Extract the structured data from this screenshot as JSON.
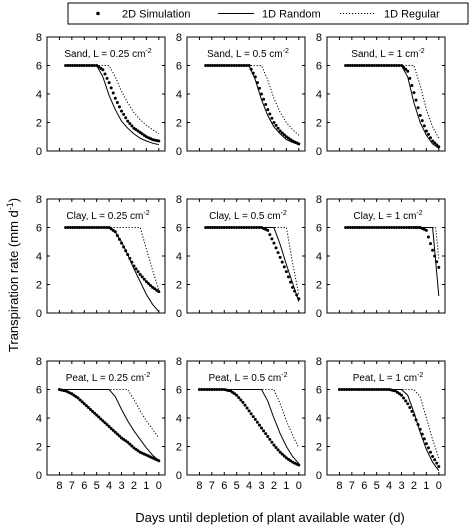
{
  "figure": {
    "ylabel": "Transpiration rate (mm d",
    "ylabel_sup": "-1",
    "ylabel_end": ")",
    "xlabel": "Days until depletion of plant available water (d)"
  },
  "legend": {
    "placement": "top",
    "entries": [
      {
        "label": "2D Simulation",
        "style": "dots"
      },
      {
        "label": "1D Random",
        "style": "solid"
      },
      {
        "label": "1D Regular",
        "style": "dotted"
      }
    ]
  },
  "chart_data": [
    {
      "type": "line",
      "label": "Sand, L = 0.25 cm",
      "label_sup": "-2",
      "xlim": [
        9,
        -0.5
      ],
      "ylim": [
        0,
        8
      ],
      "yticks": [
        0,
        2,
        4,
        6,
        8
      ],
      "xticks": [],
      "grid": false,
      "series": [
        {
          "name": "2D Simulation",
          "style": "dots",
          "x": [
            7.5,
            6,
            5,
            4.5,
            4,
            3.5,
            3,
            2.5,
            2,
            1.5,
            1,
            0.5,
            0
          ],
          "y": [
            6,
            6,
            6,
            5.7,
            4.8,
            3.7,
            2.8,
            2.1,
            1.6,
            1.3,
            1.0,
            0.8,
            0.7
          ]
        },
        {
          "name": "1D Random",
          "style": "solid",
          "x": [
            7.5,
            6,
            5,
            4.5,
            4,
            3.5,
            3,
            2.5,
            2,
            1.5,
            1,
            0.5,
            0
          ],
          "y": [
            6,
            6,
            6,
            5.2,
            3.9,
            2.9,
            2.1,
            1.6,
            1.2,
            0.9,
            0.7,
            0.55,
            0.45
          ]
        },
        {
          "name": "1D Regular",
          "style": "dotted",
          "x": [
            7.5,
            6,
            5,
            4,
            3.5,
            3,
            2.5,
            2,
            1.5,
            1,
            0.5,
            0
          ],
          "y": [
            6,
            6,
            6,
            6,
            5.2,
            4.2,
            3.4,
            2.7,
            2.2,
            1.8,
            1.5,
            1.2
          ]
        }
      ]
    },
    {
      "type": "line",
      "label": "Sand, L = 0.5 cm",
      "label_sup": "-2",
      "xlim": [
        9,
        -0.5
      ],
      "ylim": [
        0,
        8
      ],
      "yticks": [
        0,
        2,
        4,
        6,
        8
      ],
      "xticks": [],
      "grid": false,
      "series": [
        {
          "name": "2D Simulation",
          "style": "dots",
          "x": [
            7.5,
            6,
            5,
            4,
            3.5,
            3,
            2.5,
            2,
            1.5,
            1,
            0.5,
            0
          ],
          "y": [
            6,
            6,
            6,
            6,
            5.2,
            4.0,
            2.9,
            2.0,
            1.4,
            1.0,
            0.7,
            0.5
          ]
        },
        {
          "name": "1D Random",
          "style": "solid",
          "x": [
            7.5,
            6,
            5,
            4,
            3.5,
            3,
            2.5,
            2,
            1.5,
            1,
            0.5,
            0
          ],
          "y": [
            6,
            6,
            6,
            6,
            5.0,
            3.6,
            2.5,
            1.7,
            1.2,
            0.8,
            0.6,
            0.45
          ]
        },
        {
          "name": "1D Regular",
          "style": "dotted",
          "x": [
            7.5,
            6,
            5,
            4,
            3,
            2.5,
            2,
            1.5,
            1,
            0.5,
            0
          ],
          "y": [
            6,
            6,
            6,
            6,
            6,
            5.0,
            3.7,
            2.7,
            2.0,
            1.5,
            1.1
          ]
        }
      ]
    },
    {
      "type": "line",
      "label": "Sand, L = 1 cm",
      "label_sup": "-2",
      "xlim": [
        9,
        -0.5
      ],
      "ylim": [
        0,
        8
      ],
      "yticks": [
        0,
        2,
        4,
        6,
        8
      ],
      "xticks": [],
      "grid": false,
      "series": [
        {
          "name": "2D Simulation",
          "style": "dots",
          "x": [
            7.5,
            6,
            5,
            4,
            3,
            2.5,
            2,
            1.5,
            1,
            0.5,
            0
          ],
          "y": [
            6,
            6,
            6,
            6,
            6,
            5.6,
            4.1,
            2.5,
            1.4,
            0.7,
            0.3
          ]
        },
        {
          "name": "1D Random",
          "style": "solid",
          "x": [
            7.5,
            6,
            5,
            4,
            3,
            2.5,
            2,
            1.5,
            1,
            0.5,
            0
          ],
          "y": [
            6,
            6,
            6,
            6,
            6,
            5.2,
            3.4,
            2.0,
            1.1,
            0.5,
            0.2
          ]
        },
        {
          "name": "1D Regular",
          "style": "dotted",
          "x": [
            7.5,
            6,
            5,
            4,
            3,
            2,
            1.5,
            1,
            0.5,
            0
          ],
          "y": [
            6,
            6,
            6,
            6,
            6,
            6,
            4.6,
            2.9,
            1.7,
            0.9
          ]
        }
      ]
    },
    {
      "type": "line",
      "label": "Clay, L = 0.25 cm",
      "label_sup": "-2",
      "xlim": [
        9,
        -0.5
      ],
      "ylim": [
        0,
        8
      ],
      "yticks": [
        0,
        2,
        4,
        6,
        8
      ],
      "xticks": [],
      "grid": false,
      "series": [
        {
          "name": "2D Simulation",
          "style": "dots",
          "x": [
            7.5,
            6,
            5,
            4,
            3.5,
            3,
            2.5,
            2,
            1.5,
            1,
            0.5,
            0
          ],
          "y": [
            6,
            6,
            6,
            6,
            5.7,
            4.9,
            4.1,
            3.3,
            2.7,
            2.2,
            1.8,
            1.5
          ]
        },
        {
          "name": "1D Random",
          "style": "solid",
          "x": [
            7.5,
            6,
            5,
            4,
            3.5,
            3,
            2.5,
            2,
            1.5,
            1,
            0.5,
            0
          ],
          "y": [
            6,
            6,
            6,
            6,
            5.7,
            5.0,
            4.1,
            3.1,
            2.2,
            1.3,
            0.6,
            0.1
          ]
        },
        {
          "name": "1D Regular",
          "style": "dotted",
          "x": [
            7.5,
            6,
            5,
            4,
            3,
            2,
            1.5,
            1,
            0.5,
            0
          ],
          "y": [
            6,
            6,
            6,
            6,
            6,
            6,
            6,
            4.5,
            3.0,
            1.6
          ]
        }
      ]
    },
    {
      "type": "line",
      "label": "Clay, L = 0.5 cm",
      "label_sup": "-2",
      "xlim": [
        9,
        -0.5
      ],
      "ylim": [
        0,
        8
      ],
      "yticks": [
        0,
        2,
        4,
        6,
        8
      ],
      "xticks": [],
      "grid": false,
      "series": [
        {
          "name": "2D Simulation",
          "style": "dots",
          "x": [
            7.5,
            6,
            5,
            4,
            3,
            2.5,
            2,
            1.5,
            1,
            0.5,
            0
          ],
          "y": [
            6,
            6,
            6,
            6,
            6,
            5.8,
            4.9,
            3.9,
            2.9,
            1.8,
            1.0
          ]
        },
        {
          "name": "1D Random",
          "style": "solid",
          "x": [
            7.5,
            6,
            5,
            4,
            3,
            2,
            1.5,
            1,
            0.5,
            0
          ],
          "y": [
            6,
            6,
            6,
            6,
            6,
            6,
            4.8,
            3.4,
            2.1,
            0.8
          ]
        },
        {
          "name": "1D Regular",
          "style": "dotted",
          "x": [
            7.5,
            6,
            5,
            4,
            3,
            2,
            1,
            0.5,
            0
          ],
          "y": [
            6,
            6,
            6,
            6,
            6,
            6,
            6,
            3.5,
            1.3
          ]
        }
      ]
    },
    {
      "type": "line",
      "label": "Clay, L = 1 cm",
      "label_sup": "-2",
      "xlim": [
        9,
        -0.5
      ],
      "ylim": [
        0,
        8
      ],
      "yticks": [
        0,
        2,
        4,
        6,
        8
      ],
      "xticks": [],
      "grid": false,
      "series": [
        {
          "name": "2D Simulation",
          "style": "dots",
          "x": [
            7.5,
            6,
            5,
            4,
            3,
            2,
            1.5,
            1,
            0.5,
            0
          ],
          "y": [
            6,
            6,
            6,
            6,
            6,
            6,
            6,
            5.8,
            4.4,
            3.2
          ]
        },
        {
          "name": "1D Random",
          "style": "solid",
          "x": [
            7.5,
            6,
            5,
            4,
            3,
            2,
            1,
            0.5,
            0
          ],
          "y": [
            6,
            6,
            6,
            6,
            6,
            6,
            6,
            6,
            1.2
          ]
        },
        {
          "name": "1D Regular",
          "style": "dotted",
          "x": [
            7.5,
            6,
            5,
            4,
            3,
            2,
            1,
            0.25,
            0
          ],
          "y": [
            6,
            6,
            6,
            6,
            6,
            6,
            6,
            6,
            3.8
          ]
        }
      ]
    },
    {
      "type": "line",
      "label": "Peat, L = 0.25 cm",
      "label_sup": "-2",
      "xlim": [
        9,
        -0.5
      ],
      "ylim": [
        0,
        8
      ],
      "yticks": [
        0,
        2,
        4,
        6,
        8
      ],
      "xticks": [
        "8",
        "7",
        "6",
        "5",
        "4",
        "3",
        "2",
        "1",
        "0"
      ],
      "grid": false,
      "series": [
        {
          "name": "2D Simulation",
          "style": "dots",
          "x": [
            8,
            7.5,
            7,
            6.5,
            6,
            5.5,
            5,
            4.5,
            4,
            3.5,
            3,
            2.5,
            2,
            1.5,
            1,
            0.5,
            0
          ],
          "y": [
            6,
            5.9,
            5.7,
            5.4,
            5.0,
            4.6,
            4.2,
            3.8,
            3.4,
            3.0,
            2.6,
            2.3,
            1.9,
            1.6,
            1.4,
            1.2,
            1.0
          ]
        },
        {
          "name": "1D Random",
          "style": "solid",
          "x": [
            8,
            7,
            6,
            5,
            4,
            3.5,
            3,
            2.5,
            2,
            1.5,
            1,
            0.5,
            0
          ],
          "y": [
            6,
            6,
            6,
            6,
            6,
            5.5,
            4.6,
            3.8,
            3.1,
            2.5,
            1.9,
            1.4,
            1.0
          ]
        },
        {
          "name": "1D Regular",
          "style": "dotted",
          "x": [
            8,
            7,
            6,
            5,
            4,
            3,
            2.5,
            2,
            1.5,
            1,
            0.5,
            0
          ],
          "y": [
            6,
            6,
            6,
            6,
            6,
            6,
            6,
            5.3,
            4.5,
            3.8,
            3.2,
            2.6
          ]
        }
      ]
    },
    {
      "type": "line",
      "label": "Peat, L = 0.5 cm",
      "label_sup": "-2",
      "xlim": [
        9,
        -0.5
      ],
      "ylim": [
        0,
        8
      ],
      "yticks": [
        0,
        2,
        4,
        6,
        8
      ],
      "xticks": [
        "8",
        "7",
        "6",
        "5",
        "4",
        "3",
        "2",
        "1",
        "0"
      ],
      "grid": false,
      "series": [
        {
          "name": "2D Simulation",
          "style": "dots",
          "x": [
            8,
            7,
            6,
            5.5,
            5,
            4.5,
            4,
            3.5,
            3,
            2.5,
            2,
            1.5,
            1,
            0.5,
            0
          ],
          "y": [
            6,
            6,
            6,
            5.9,
            5.6,
            5.1,
            4.5,
            3.9,
            3.3,
            2.7,
            2.1,
            1.6,
            1.2,
            0.9,
            0.7
          ]
        },
        {
          "name": "1D Random",
          "style": "solid",
          "x": [
            8,
            7,
            6,
            5,
            4,
            3,
            2.5,
            2,
            1.5,
            1,
            0.5,
            0
          ],
          "y": [
            6,
            6,
            6,
            6,
            6,
            6,
            5.2,
            4.0,
            2.9,
            2.0,
            1.3,
            0.8
          ]
        },
        {
          "name": "1D Regular",
          "style": "dotted",
          "x": [
            8,
            7,
            6,
            5,
            4,
            3,
            2,
            1.5,
            1,
            0.5,
            0
          ],
          "y": [
            6,
            6,
            6,
            6,
            6,
            6,
            6,
            5.0,
            3.8,
            2.8,
            1.9
          ]
        }
      ]
    },
    {
      "type": "line",
      "label": "Peat, L = 1 cm",
      "label_sup": "-2",
      "xlim": [
        9,
        -0.5
      ],
      "ylim": [
        0,
        8
      ],
      "yticks": [
        0,
        2,
        4,
        6,
        8
      ],
      "xticks": [
        "8",
        "7",
        "6",
        "5",
        "4",
        "3",
        "2",
        "1",
        "0"
      ],
      "grid": false,
      "series": [
        {
          "name": "2D Simulation",
          "style": "dots",
          "x": [
            8,
            7,
            6,
            5,
            4,
            3.5,
            3,
            2.5,
            2,
            1.5,
            1,
            0.5,
            0
          ],
          "y": [
            6,
            6,
            6,
            6,
            6,
            5.9,
            5.6,
            5.0,
            4.2,
            3.2,
            2.2,
            1.3,
            0.6
          ]
        },
        {
          "name": "1D Random",
          "style": "solid",
          "x": [
            8,
            7,
            6,
            5,
            4,
            3,
            2.5,
            2,
            1.5,
            1,
            0.5,
            0
          ],
          "y": [
            6,
            6,
            6,
            6,
            6,
            6,
            5.6,
            4.4,
            3.0,
            1.8,
            0.9,
            0.3
          ]
        },
        {
          "name": "1D Regular",
          "style": "dotted",
          "x": [
            8,
            7,
            6,
            5,
            4,
            3,
            2,
            1.5,
            1,
            0.5,
            0
          ],
          "y": [
            6,
            6,
            6,
            6,
            6,
            6,
            6,
            5.5,
            4.0,
            2.5,
            1.2
          ]
        }
      ]
    }
  ]
}
